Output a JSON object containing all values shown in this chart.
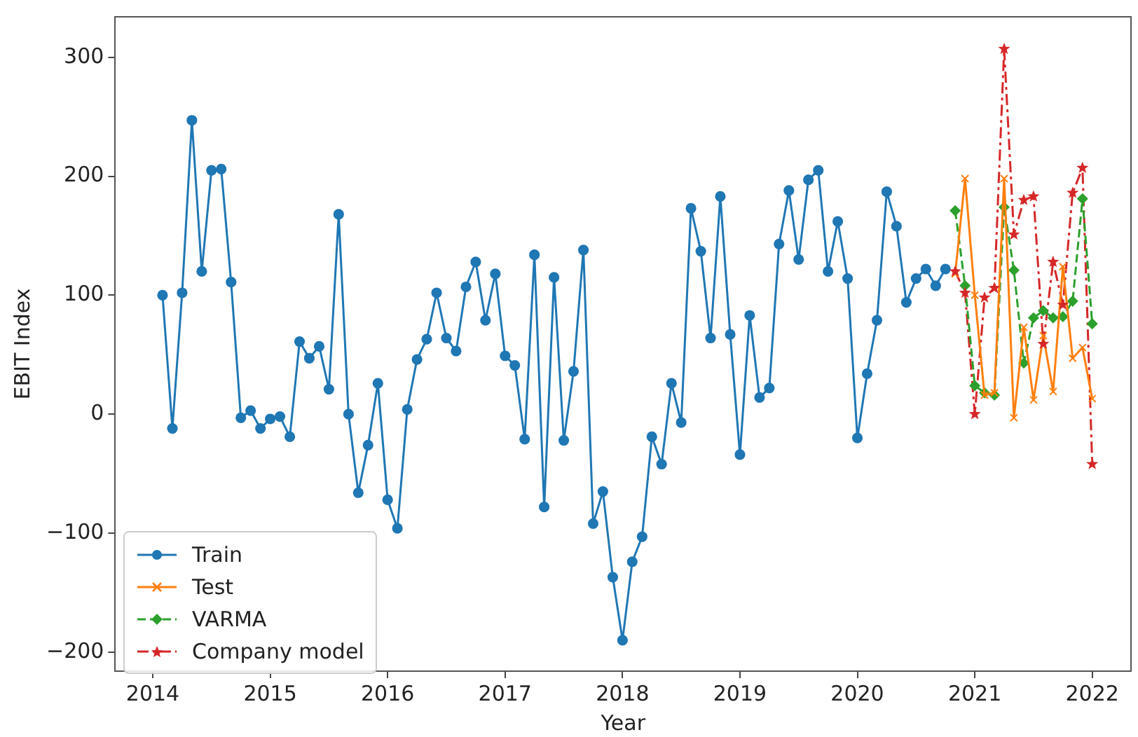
{
  "chart_data": {
    "type": "line",
    "xlabel": "Year",
    "ylabel": "EBIT Index",
    "x": [
      2014.083,
      2014.167,
      2014.25,
      2014.333,
      2014.417,
      2014.5,
      2014.583,
      2014.667,
      2014.75,
      2014.833,
      2014.917,
      2015.0,
      2015.083,
      2015.167,
      2015.25,
      2015.333,
      2015.417,
      2015.5,
      2015.583,
      2015.667,
      2015.75,
      2015.833,
      2015.917,
      2016.0,
      2016.083,
      2016.167,
      2016.25,
      2016.333,
      2016.417,
      2016.5,
      2016.583,
      2016.667,
      2016.75,
      2016.833,
      2016.917,
      2017.0,
      2017.083,
      2017.167,
      2017.25,
      2017.333,
      2017.417,
      2017.5,
      2017.583,
      2017.667,
      2017.75,
      2017.833,
      2017.917,
      2018.0,
      2018.083,
      2018.167,
      2018.25,
      2018.333,
      2018.417,
      2018.5,
      2018.583,
      2018.667,
      2018.75,
      2018.833,
      2018.917,
      2019.0,
      2019.083,
      2019.167,
      2019.25,
      2019.333,
      2019.417,
      2019.5,
      2019.583,
      2019.667,
      2019.75,
      2019.833,
      2019.917,
      2020.0,
      2020.083,
      2020.167,
      2020.25,
      2020.333,
      2020.417,
      2020.5,
      2020.583,
      2020.667,
      2020.75
    ],
    "series": [
      {
        "name": "Train",
        "color": "#1f77b4",
        "marker": "circle",
        "line_style": "solid",
        "values": [
          100,
          -12,
          102,
          247,
          120,
          205,
          206,
          111,
          -3,
          3,
          -12,
          -4,
          -2,
          -19,
          61,
          47,
          57,
          21,
          168,
          0,
          -66,
          -26,
          26,
          -72,
          -96,
          4,
          46,
          63,
          102,
          64,
          53,
          107,
          128,
          79,
          118,
          49,
          41,
          -21,
          134,
          -78,
          115,
          -22,
          36,
          138,
          -92,
          -65,
          -137,
          -190,
          -124,
          -103,
          -19,
          -42,
          26,
          -7,
          173,
          137,
          64,
          183,
          67,
          -34,
          83,
          14,
          22,
          143,
          188,
          130,
          197,
          205,
          120,
          162,
          114,
          -20,
          34,
          79,
          187,
          158,
          94,
          114,
          122,
          108,
          122
        ]
      },
      {
        "name": "Test",
        "color": "#ff7f0e",
        "marker": "cross",
        "line_style": "solid",
        "x": [
          2020.833,
          2020.917,
          2021.0,
          2021.083,
          2021.167,
          2021.25,
          2021.333,
          2021.417,
          2021.5,
          2021.583,
          2021.667,
          2021.75,
          2021.833,
          2021.917,
          2022.0
        ],
        "values": [
          118,
          198,
          100,
          16,
          18,
          198,
          -3,
          73,
          12,
          66,
          19,
          124,
          47,
          56,
          13
        ]
      },
      {
        "name": "VARMA",
        "color": "#2ca02c",
        "marker": "diamond",
        "line_style": "dashed",
        "x": [
          2020.833,
          2020.917,
          2021.0,
          2021.083,
          2021.167,
          2021.25,
          2021.333,
          2021.417,
          2021.5,
          2021.583,
          2021.667,
          2021.75,
          2021.833,
          2021.917,
          2022.0
        ],
        "values": [
          171,
          108,
          24,
          18,
          16,
          174,
          121,
          43,
          81,
          87,
          81,
          82,
          95,
          181,
          76
        ]
      },
      {
        "name": "Company model",
        "color": "#d62728",
        "marker": "star",
        "line_style": "dashdot",
        "x": [
          2020.833,
          2020.917,
          2021.0,
          2021.083,
          2021.167,
          2021.25,
          2021.333,
          2021.417,
          2021.5,
          2021.583,
          2021.667,
          2021.75,
          2021.833,
          2021.917,
          2022.0
        ],
        "values": [
          120,
          102,
          0,
          98,
          106,
          307,
          151,
          180,
          183,
          59,
          128,
          92,
          186,
          207,
          -42
        ]
      }
    ],
    "xlim": [
      2013.68,
      2022.33
    ],
    "xticks": [
      2014,
      2015,
      2016,
      2017,
      2018,
      2019,
      2020,
      2021,
      2022
    ],
    "ylim": [
      -216,
      334
    ],
    "yticks": [
      -200,
      -100,
      0,
      100,
      200,
      300
    ],
    "grid": false,
    "legend": "bottom left"
  }
}
